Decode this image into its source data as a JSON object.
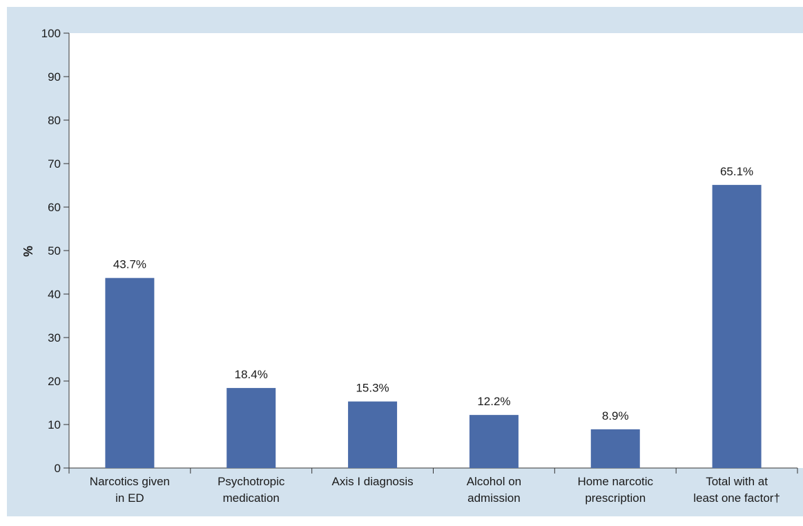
{
  "colors": {
    "background": "#d3e2ee",
    "plot_background": "#ffffff",
    "bar": "#4a6ba8",
    "axis": "#333333"
  },
  "chart_data": {
    "type": "bar",
    "categories": [
      [
        "Narcotics given",
        "in ED"
      ],
      [
        "Psychotropic",
        "medication"
      ],
      [
        "Axis I diagnosis"
      ],
      [
        "Alcohol on",
        "admission"
      ],
      [
        "Home narcotic",
        "prescription"
      ],
      [
        "Total with at",
        "least one factor†"
      ]
    ],
    "values": [
      43.7,
      18.4,
      15.3,
      12.2,
      8.9,
      65.1
    ],
    "value_labels": [
      "43.7%",
      "18.4%",
      "15.3%",
      "12.2%",
      "8.9%",
      "65.1%"
    ],
    "ylabel": "%",
    "ylim": [
      0,
      100
    ],
    "yticks": [
      0,
      10,
      20,
      30,
      40,
      50,
      60,
      70,
      80,
      90,
      100
    ],
    "grid": false,
    "legend": "none"
  }
}
